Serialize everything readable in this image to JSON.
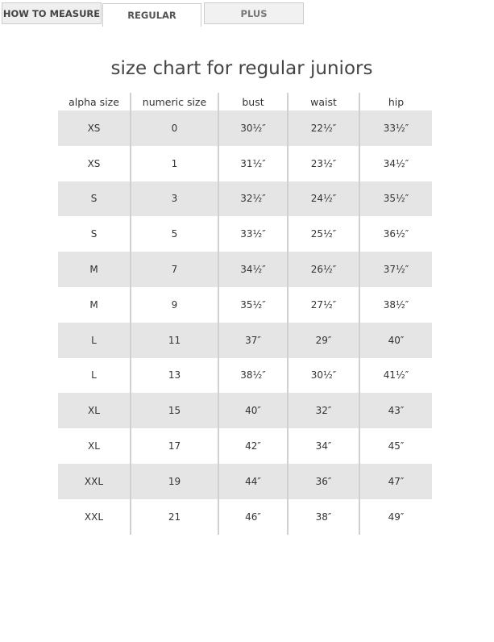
{
  "tabs": [
    {
      "label": "HOW TO MEASURE"
    },
    {
      "label": "REGULAR",
      "active": true
    },
    {
      "label": "PLUS"
    }
  ],
  "title": "size chart for regular juniors",
  "columns": [
    "alpha size",
    "numeric size",
    "bust",
    "waist",
    "hip"
  ],
  "rows": [
    [
      "XS",
      "0",
      "30½″",
      "22½″",
      "33½″"
    ],
    [
      "XS",
      "1",
      "31½″",
      "23½″",
      "34½″"
    ],
    [
      "S",
      "3",
      "32½″",
      "24½″",
      "35½″"
    ],
    [
      "S",
      "5",
      "33½″",
      "25½″",
      "36½″"
    ],
    [
      "M",
      "7",
      "34½″",
      "26½″",
      "37½″"
    ],
    [
      "M",
      "9",
      "35½″",
      "27½″",
      "38½″"
    ],
    [
      "L",
      "11",
      "37″",
      "29″",
      "40″"
    ],
    [
      "L",
      "13",
      "38½″",
      "30½″",
      "41½″"
    ],
    [
      "XL",
      "15",
      "40″",
      "32″",
      "43″"
    ],
    [
      "XL",
      "17",
      "42″",
      "34″",
      "45″"
    ],
    [
      "XXL",
      "19",
      "44″",
      "36″",
      "47″"
    ],
    [
      "XXL",
      "21",
      "46″",
      "38″",
      "49″"
    ]
  ]
}
